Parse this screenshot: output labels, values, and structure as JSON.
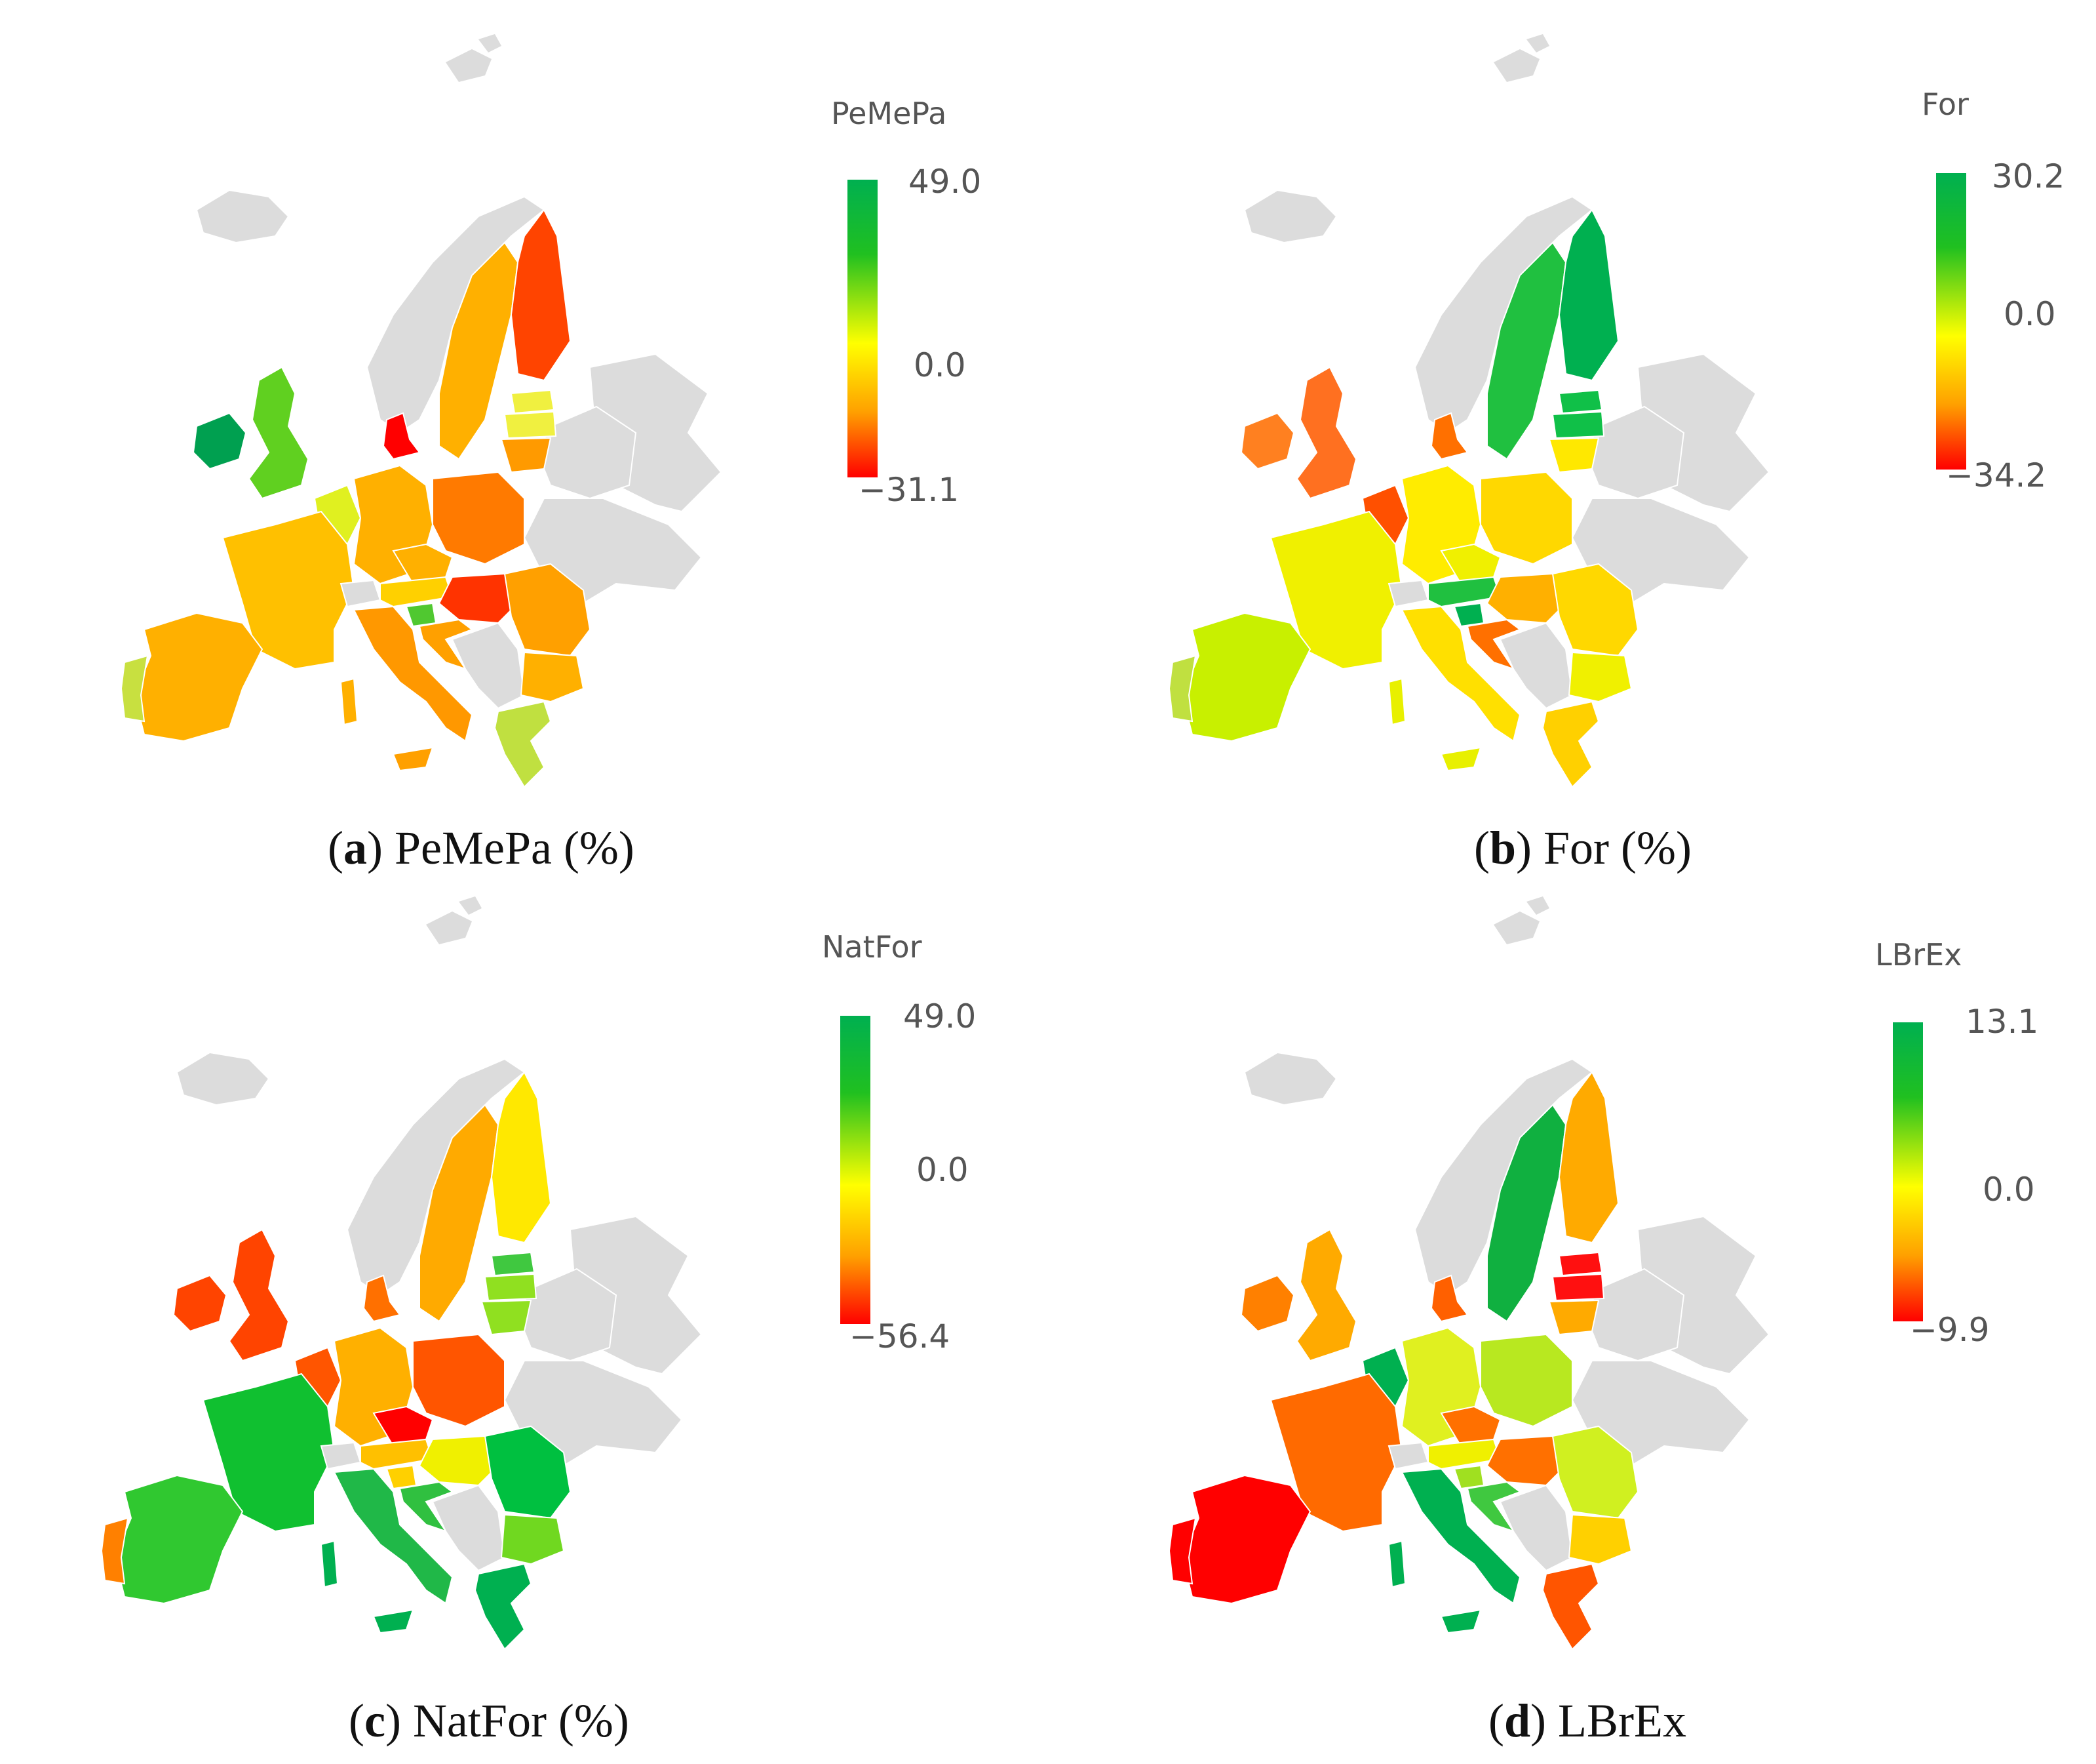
{
  "colors": {
    "land_noneu": "#dcdcdc",
    "red": "#ff0000",
    "yellow": "#ffff00",
    "green": "#00b050"
  },
  "panels": [
    {
      "letter": "a",
      "caption": "PeMePa (%)",
      "legend": {
        "title": "PeMePa",
        "max": "49.0",
        "mid": "0.0",
        "min": "−31.1"
      },
      "regions": {
        "iceland": "grey",
        "norway": "grey",
        "sweden": "#ffb000",
        "finland": "#ff4400",
        "estonia": "#f0f040",
        "latvia": "#f0f040",
        "lithuania": "#ff9a00",
        "denmark": "#ff0000",
        "ireland": "#00a050",
        "uk": "#60d020",
        "benelux": "#e0f020",
        "germany": "#ffb000",
        "poland": "#ff7a00",
        "czechia": "#ffb000",
        "austria": "#ffd000",
        "hungary": "#ff3300",
        "slovenia": "#50c830",
        "croatia": "#ffa000",
        "balkans": "grey",
        "romania": "#ffa000",
        "bulgaria": "#ffb000",
        "greece": "#c0e040",
        "france": "#ffc000",
        "iberia": "#ffb000",
        "portugal": "#c8e040",
        "italy": "#ff9800",
        "sardinia": "#ffb000",
        "sicily": "#ffa000",
        "switzerland": "grey",
        "belarus": "grey",
        "ukraine": "grey",
        "russia": "grey"
      }
    },
    {
      "letter": "b",
      "caption": "For (%)",
      "legend": {
        "title": "For",
        "max": "30.2",
        "mid": "0.0",
        "min": "−34.2"
      },
      "regions": {
        "iceland": "grey",
        "norway": "grey",
        "sweden": "#20c040",
        "finland": "#00b050",
        "estonia": "#10c048",
        "latvia": "#10c048",
        "lithuania": "#ffe800",
        "denmark": "#ff7000",
        "ireland": "#ff8020",
        "uk": "#ff7020",
        "benelux": "#ff5000",
        "germany": "#ffec00",
        "poland": "#ffd800",
        "czechia": "#f0f000",
        "austria": "#20c040",
        "hungary": "#ffb000",
        "slovenia": "#00b050",
        "croatia": "#ff7000",
        "balkans": "grey",
        "romania": "#ffd800",
        "bulgaria": "#f0f000",
        "greece": "#ffd000",
        "france": "#f0f000",
        "iberia": "#c8f000",
        "portugal": "#c0e040",
        "italy": "#ffe000",
        "sardinia": "#e8f000",
        "sicily": "#e8f000",
        "switzerland": "grey",
        "belarus": "grey",
        "ukraine": "grey",
        "russia": "grey"
      }
    },
    {
      "letter": "c",
      "caption": "NatFor (%)",
      "legend": {
        "title": "NatFor",
        "max": "49.0",
        "mid": "0.0",
        "min": "−56.4"
      },
      "regions": {
        "iceland": "grey",
        "norway": "grey",
        "sweden": "#ffaa00",
        "finland": "#ffe800",
        "estonia": "#40c840",
        "latvia": "#90e020",
        "lithuania": "#90e020",
        "denmark": "#ff7000",
        "ireland": "#ff4400",
        "uk": "#ff4400",
        "benelux": "#ff5500",
        "germany": "#ffb000",
        "poland": "#ff5500",
        "czechia": "#ff0000",
        "austria": "#ffc000",
        "hungary": "#f0f000",
        "slovenia": "#ffd000",
        "croatia": "#30c040",
        "balkans": "grey",
        "romania": "#00c040",
        "bulgaria": "#70d820",
        "greece": "#00b050",
        "france": "#10c030",
        "iberia": "#30c830",
        "portugal": "#ff8000",
        "italy": "#20b848",
        "sardinia": "#00b050",
        "sicily": "#00b050",
        "switzerland": "grey",
        "belarus": "grey",
        "ukraine": "grey",
        "russia": "grey"
      }
    },
    {
      "letter": "d",
      "caption": "LBrEx",
      "legend": {
        "title": "LBrEx",
        "max": "13.1",
        "mid": "0.0",
        "min": "−9.9"
      },
      "regions": {
        "iceland": "grey",
        "norway": "grey",
        "sweden": "#10b040",
        "finland": "#ffaa00",
        "estonia": "#ff1010",
        "latvia": "#ff1010",
        "lithuania": "#ffaa00",
        "denmark": "#ff6000",
        "ireland": "#ff8000",
        "uk": "#ffaa00",
        "benelux": "#00b050",
        "germany": "#e0f020",
        "poland": "#b8e820",
        "czechia": "#ff7000",
        "austria": "#f0f000",
        "hungary": "#ff7000",
        "slovenia": "#a0e020",
        "croatia": "#40c840",
        "balkans": "grey",
        "romania": "#d0f020",
        "bulgaria": "#ffd000",
        "greece": "#ff5500",
        "france": "#ff6a00",
        "iberia": "#ff0000",
        "portugal": "#ff0000",
        "italy": "#00b050",
        "sardinia": "#00b050",
        "sicily": "#00b050",
        "switzerland": "grey",
        "belarus": "grey",
        "ukraine": "grey",
        "russia": "grey"
      }
    }
  ]
}
